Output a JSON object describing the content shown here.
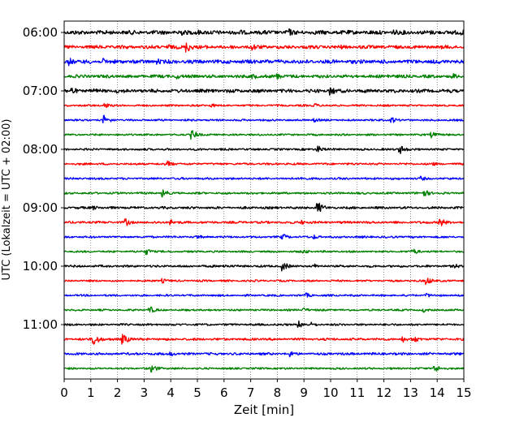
{
  "chart_data": {
    "type": "line",
    "title": "",
    "xlabel": "Zeit  [min]",
    "ylabel": "UTC (Lokalzeit = UTC + 02:00)",
    "xlim": [
      0,
      15
    ],
    "x_ticks": [
      0,
      1,
      2,
      3,
      4,
      5,
      6,
      7,
      8,
      9,
      10,
      11,
      12,
      13,
      14,
      15
    ],
    "x_tick_labels": [
      "0",
      "1",
      "2",
      "3",
      "4",
      "5",
      "6",
      "7",
      "8",
      "9",
      "10",
      "11",
      "12",
      "13",
      "14",
      "15"
    ],
    "y_tick_labels": [
      "06:00",
      "07:00",
      "08:00",
      "09:00",
      "10:00",
      "11:00"
    ],
    "grid_x": true,
    "trace_colors": [
      "#000000",
      "#ff0000",
      "#0000ff",
      "#008000"
    ],
    "series": [
      {
        "row": "06:00",
        "color": "#000000",
        "base_amp": 2.6,
        "events": [
          [
            4.3,
            6
          ],
          [
            5.0,
            4
          ],
          [
            6.6,
            4
          ],
          [
            8.4,
            6
          ],
          [
            9.5,
            3
          ],
          [
            12.4,
            4
          ],
          [
            14.9,
            4
          ]
        ]
      },
      {
        "row": "06:15",
        "color": "#ff0000",
        "base_amp": 2.2,
        "events": [
          [
            3.9,
            4
          ],
          [
            4.6,
            7
          ],
          [
            7.1,
            5
          ],
          [
            10.4,
            3
          ],
          [
            14.1,
            3
          ]
        ]
      },
      {
        "row": "06:30",
        "color": "#0000ff",
        "base_amp": 2.4,
        "events": [
          [
            0.2,
            5
          ],
          [
            1.5,
            4
          ],
          [
            3.5,
            4
          ],
          [
            7.6,
            3
          ]
        ]
      },
      {
        "row": "06:45",
        "color": "#008000",
        "base_amp": 2.0,
        "events": [
          [
            4.2,
            4
          ],
          [
            7.1,
            4
          ],
          [
            8.0,
            4
          ],
          [
            12.2,
            3
          ],
          [
            14.6,
            4
          ]
        ]
      },
      {
        "row": "07:00",
        "color": "#000000",
        "base_amp": 2.2,
        "events": [
          [
            0.3,
            5
          ],
          [
            1.1,
            4
          ],
          [
            2.0,
            3
          ],
          [
            10.0,
            6
          ]
        ]
      },
      {
        "row": "07:15",
        "color": "#ff0000",
        "base_amp": 1.2,
        "events": [
          [
            1.5,
            4
          ],
          [
            5.5,
            3
          ],
          [
            9.4,
            3
          ]
        ]
      },
      {
        "row": "07:30",
        "color": "#0000ff",
        "base_amp": 1.2,
        "events": [
          [
            1.5,
            6
          ],
          [
            9.4,
            3
          ],
          [
            12.3,
            4
          ]
        ]
      },
      {
        "row": "07:45",
        "color": "#008000",
        "base_amp": 1.2,
        "events": [
          [
            4.8,
            6
          ],
          [
            13.8,
            4
          ]
        ]
      },
      {
        "row": "08:00",
        "color": "#000000",
        "base_amp": 1.3,
        "events": [
          [
            9.5,
            5
          ],
          [
            12.6,
            6
          ]
        ]
      },
      {
        "row": "08:15",
        "color": "#ff0000",
        "base_amp": 1.3,
        "events": [
          [
            3.9,
            4
          ],
          [
            13.8,
            3
          ]
        ]
      },
      {
        "row": "08:30",
        "color": "#0000ff",
        "base_amp": 1.3,
        "events": [
          [
            8.9,
            3
          ],
          [
            13.4,
            3
          ]
        ]
      },
      {
        "row": "08:45",
        "color": "#008000",
        "base_amp": 1.3,
        "events": [
          [
            3.7,
            5
          ],
          [
            13.5,
            5
          ]
        ]
      },
      {
        "row": "09:00",
        "color": "#000000",
        "base_amp": 1.5,
        "events": [
          [
            1.1,
            3
          ],
          [
            9.5,
            8
          ]
        ]
      },
      {
        "row": "09:15",
        "color": "#ff0000",
        "base_amp": 1.5,
        "events": [
          [
            2.3,
            5
          ],
          [
            4.0,
            4
          ],
          [
            8.9,
            3
          ],
          [
            14.1,
            6
          ]
        ]
      },
      {
        "row": "09:30",
        "color": "#0000ff",
        "base_amp": 1.3,
        "events": [
          [
            5.0,
            3
          ],
          [
            8.2,
            4
          ],
          [
            9.4,
            3
          ]
        ]
      },
      {
        "row": "09:45",
        "color": "#008000",
        "base_amp": 1.2,
        "events": [
          [
            3.1,
            4
          ],
          [
            9.0,
            3
          ],
          [
            13.1,
            4
          ]
        ]
      },
      {
        "row": "10:00",
        "color": "#000000",
        "base_amp": 1.4,
        "events": [
          [
            6.0,
            3
          ],
          [
            8.2,
            6
          ],
          [
            9.4,
            3
          ],
          [
            14.7,
            3
          ]
        ]
      },
      {
        "row": "10:15",
        "color": "#ff0000",
        "base_amp": 1.2,
        "events": [
          [
            3.7,
            3
          ],
          [
            13.6,
            5
          ]
        ]
      },
      {
        "row": "10:30",
        "color": "#0000ff",
        "base_amp": 1.2,
        "events": [
          [
            9.1,
            3
          ],
          [
            13.6,
            3
          ]
        ]
      },
      {
        "row": "10:45",
        "color": "#008000",
        "base_amp": 1.2,
        "events": [
          [
            3.2,
            5
          ],
          [
            9.0,
            3
          ],
          [
            13.5,
            3
          ]
        ]
      },
      {
        "row": "11:00",
        "color": "#000000",
        "base_amp": 1.3,
        "events": [
          [
            8.8,
            5
          ],
          [
            9.3,
            3
          ]
        ]
      },
      {
        "row": "11:15",
        "color": "#ff0000",
        "base_amp": 1.5,
        "events": [
          [
            1.1,
            8
          ],
          [
            2.2,
            7
          ],
          [
            12.7,
            4
          ],
          [
            13.1,
            5
          ]
        ]
      },
      {
        "row": "11:30",
        "color": "#0000ff",
        "base_amp": 1.5,
        "events": [
          [
            4.0,
            3
          ],
          [
            8.5,
            4
          ]
        ]
      },
      {
        "row": "11:45",
        "color": "#008000",
        "base_amp": 1.2,
        "events": [
          [
            3.3,
            5
          ],
          [
            13.9,
            5
          ]
        ]
      }
    ]
  }
}
